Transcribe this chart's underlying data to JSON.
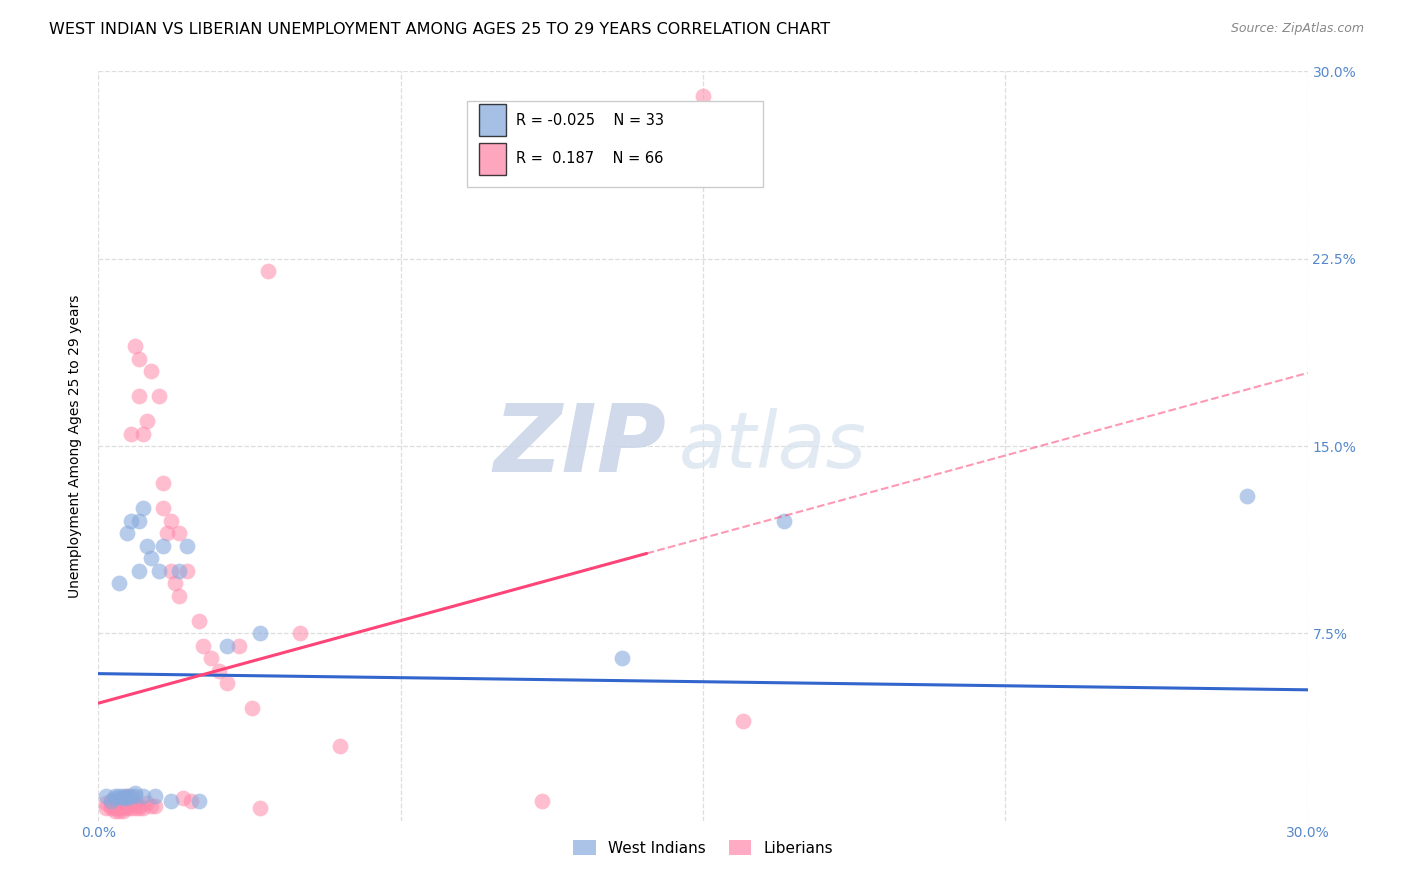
{
  "title": "WEST INDIAN VS LIBERIAN UNEMPLOYMENT AMONG AGES 25 TO 29 YEARS CORRELATION CHART",
  "source": "Source: ZipAtlas.com",
  "ylabel": "Unemployment Among Ages 25 to 29 years",
  "xlim": [
    0.0,
    0.3
  ],
  "ylim": [
    0.0,
    0.3
  ],
  "west_indian_color": "#88AADD",
  "liberian_color": "#FF88AA",
  "west_indian_R": -0.025,
  "west_indian_N": 33,
  "liberian_R": 0.187,
  "liberian_N": 66,
  "watermark_zip": "ZIP",
  "watermark_atlas": "atlas",
  "west_indian_x": [
    0.002,
    0.003,
    0.004,
    0.004,
    0.005,
    0.005,
    0.006,
    0.006,
    0.007,
    0.007,
    0.007,
    0.008,
    0.008,
    0.009,
    0.009,
    0.01,
    0.01,
    0.011,
    0.011,
    0.012,
    0.013,
    0.014,
    0.015,
    0.016,
    0.018,
    0.02,
    0.022,
    0.025,
    0.032,
    0.04,
    0.13,
    0.17,
    0.285
  ],
  "west_indian_y": [
    0.01,
    0.008,
    0.009,
    0.01,
    0.095,
    0.01,
    0.009,
    0.01,
    0.009,
    0.01,
    0.115,
    0.12,
    0.01,
    0.01,
    0.011,
    0.12,
    0.1,
    0.125,
    0.01,
    0.11,
    0.105,
    0.01,
    0.1,
    0.11,
    0.008,
    0.1,
    0.11,
    0.008,
    0.07,
    0.075,
    0.065,
    0.12,
    0.13
  ],
  "liberian_x": [
    0.002,
    0.002,
    0.003,
    0.003,
    0.003,
    0.004,
    0.004,
    0.004,
    0.004,
    0.005,
    0.005,
    0.005,
    0.005,
    0.005,
    0.006,
    0.006,
    0.006,
    0.006,
    0.007,
    0.007,
    0.007,
    0.007,
    0.008,
    0.008,
    0.008,
    0.008,
    0.009,
    0.009,
    0.009,
    0.01,
    0.01,
    0.01,
    0.01,
    0.011,
    0.011,
    0.012,
    0.012,
    0.013,
    0.013,
    0.014,
    0.015,
    0.016,
    0.016,
    0.017,
    0.018,
    0.018,
    0.019,
    0.02,
    0.02,
    0.021,
    0.022,
    0.023,
    0.025,
    0.026,
    0.028,
    0.03,
    0.032,
    0.035,
    0.038,
    0.04,
    0.042,
    0.05,
    0.06,
    0.11,
    0.15,
    0.16
  ],
  "liberian_y": [
    0.005,
    0.007,
    0.005,
    0.006,
    0.008,
    0.004,
    0.005,
    0.006,
    0.008,
    0.004,
    0.005,
    0.006,
    0.007,
    0.008,
    0.004,
    0.005,
    0.007,
    0.009,
    0.005,
    0.006,
    0.008,
    0.01,
    0.005,
    0.007,
    0.009,
    0.155,
    0.005,
    0.007,
    0.19,
    0.005,
    0.006,
    0.185,
    0.17,
    0.005,
    0.155,
    0.007,
    0.16,
    0.006,
    0.18,
    0.006,
    0.17,
    0.125,
    0.135,
    0.115,
    0.12,
    0.1,
    0.095,
    0.115,
    0.09,
    0.009,
    0.1,
    0.008,
    0.08,
    0.07,
    0.065,
    0.06,
    0.055,
    0.07,
    0.045,
    0.005,
    0.22,
    0.075,
    0.03,
    0.008,
    0.29,
    0.04
  ],
  "background_color": "#ffffff",
  "grid_color": "#dddddd",
  "title_fontsize": 11.5,
  "axis_label_fontsize": 10,
  "tick_fontsize": 10,
  "legend_fontsize": 11
}
